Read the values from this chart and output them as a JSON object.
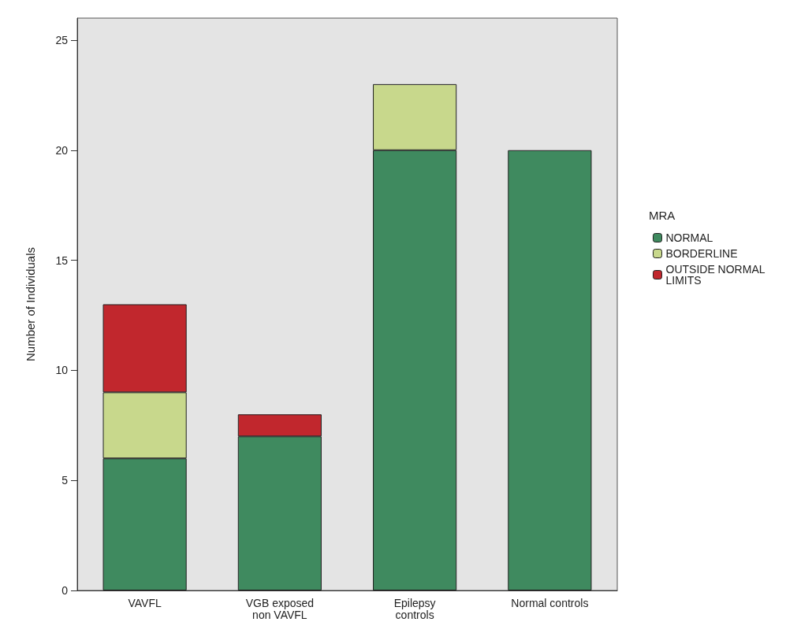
{
  "chart_data": {
    "type": "bar",
    "stacked": true,
    "ylabel": "Number of Individuals",
    "legend_title": "MRA",
    "legend": "right",
    "categories": [
      "VAVFL",
      "VGB exposed\nnon VAVFL",
      "Epilepsy\ncontrols",
      "Normal controls"
    ],
    "series": [
      {
        "name": "NORMAL",
        "color": "#3f8a5f",
        "values": [
          6,
          7,
          20,
          20
        ]
      },
      {
        "name": "BORDERLINE",
        "color": "#c8d88c",
        "values": [
          3,
          0,
          3,
          0
        ]
      },
      {
        "name": "OUTSIDE NORMAL LIMITS",
        "color": "#c1272d",
        "values": [
          4,
          1,
          0,
          0
        ]
      }
    ],
    "ylim": [
      0,
      26
    ],
    "yticks": [
      0,
      5,
      10,
      15,
      20,
      25
    ],
    "grid": false
  }
}
